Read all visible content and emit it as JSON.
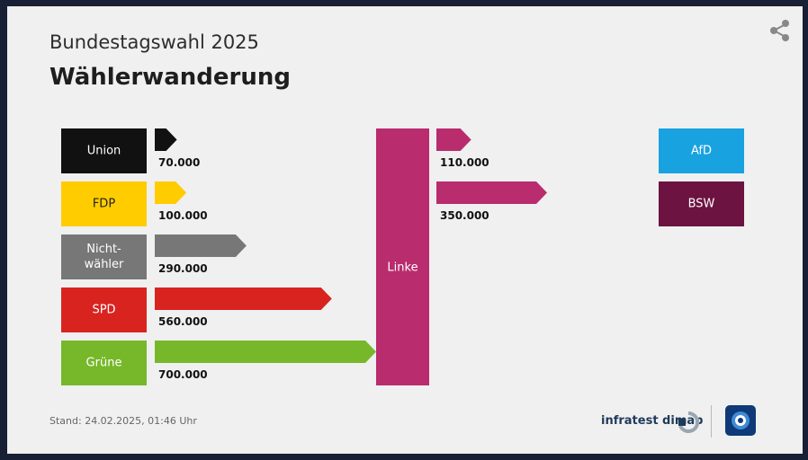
{
  "header": {
    "subtitle": "Bundestagswahl 2025",
    "title": "Wählerwanderung"
  },
  "footer": {
    "stand": "Stand:  24.02.2025, 01:46 Uhr",
    "brand": "infratest dimap"
  },
  "icons": [
    "share-icon",
    "infratest-logo-icon",
    "ard-tagesschau-logo-icon"
  ],
  "chart_data": {
    "type": "flow",
    "center": {
      "name": "Linke",
      "color": "#b92c6e"
    },
    "gains": [
      {
        "from": "Union",
        "lines": [
          "Union"
        ],
        "value": 70000,
        "label": "70.000",
        "color": "#111111",
        "text_color": "#ffffff"
      },
      {
        "from": "FDP",
        "lines": [
          "FDP"
        ],
        "value": 100000,
        "label": "100.000",
        "color": "#ffcc00",
        "text_color": "#222222"
      },
      {
        "from": "Nichtwähler",
        "lines": [
          "Nicht-",
          "wähler"
        ],
        "value": 290000,
        "label": "290.000",
        "color": "#777777",
        "text_color": "#ffffff"
      },
      {
        "from": "SPD",
        "lines": [
          "SPD"
        ],
        "value": 560000,
        "label": "560.000",
        "color": "#d9231f",
        "text_color": "#ffffff"
      },
      {
        "from": "Grüne",
        "lines": [
          "Grüne"
        ],
        "value": 700000,
        "label": "700.000",
        "color": "#76b82a",
        "text_color": "#ffffff"
      }
    ],
    "losses": [
      {
        "to": "AfD",
        "lines": [
          "AfD"
        ],
        "value": 110000,
        "label": "110.000",
        "color": "#19a2e0",
        "text_color": "#ffffff"
      },
      {
        "to": "BSW",
        "lines": [
          "BSW"
        ],
        "value": 350000,
        "label": "350.000",
        "color": "#6c1341",
        "text_color": "#ffffff"
      }
    ]
  }
}
